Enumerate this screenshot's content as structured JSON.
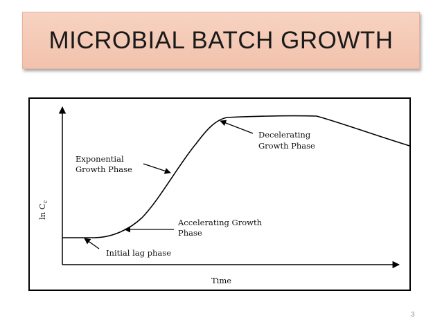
{
  "slide": {
    "title": "MICROBIAL BATCH GROWTH",
    "page_number": "3"
  },
  "diagram": {
    "y_axis_label": "ln C",
    "y_axis_label_sub": "c",
    "x_axis_label": "Time",
    "annotations": {
      "exponential_line1": "Exponential",
      "exponential_line2": "Growth Phase",
      "decelerating_line1": "Decelerating",
      "decelerating_line2": "Growth Phase",
      "accelerating_line1": "Accelerating Growth",
      "accelerating_line2": "Phase",
      "lag": "Initial lag phase"
    }
  }
}
